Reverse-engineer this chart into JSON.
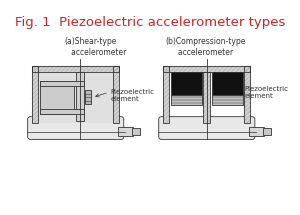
{
  "title": "Fig. 1  Piezoelectric accelerometer types",
  "title_color": "#d32020",
  "title_fontsize": 9.5,
  "label_a": "(a)Shear-type\n   accelerometer",
  "label_b": "(b)Compression-type\n     accelerometer",
  "annotation": "Piezoelectric\nelement",
  "bg_color": "#ffffff",
  "line_color": "#333333",
  "gray_light": "#d0d0d0",
  "gray_med": "#a8a8a8",
  "gray_dark": "#1a1a1a",
  "gray_inner": "#e8e8e8",
  "gray_hatch": "#bbbbbb"
}
